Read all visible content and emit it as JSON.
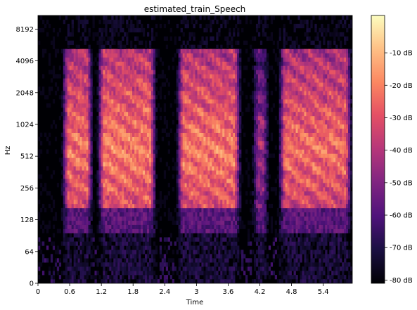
{
  "chart_data": {
    "type": "heatmap",
    "title": "estimated_train_Speech",
    "xlabel": "Time",
    "ylabel": "Hz",
    "x_ticks": [
      "0",
      "0.6",
      "1.2",
      "1.8",
      "2.4",
      "3",
      "3.6",
      "4.2",
      "4.8",
      "5.4"
    ],
    "x_tick_values": [
      0,
      0.6,
      1.2,
      1.8,
      2.4,
      3.0,
      3.6,
      4.2,
      4.8,
      5.4
    ],
    "xlim": [
      0,
      5.95
    ],
    "y_ticks": [
      "0",
      "64",
      "128",
      "256",
      "512",
      "1024",
      "2048",
      "4096",
      "8192"
    ],
    "y_tick_values": [
      0,
      64,
      128,
      256,
      512,
      1024,
      2048,
      4096,
      8192
    ],
    "y_scale": "log",
    "ylim": [
      0,
      11025
    ],
    "colorbar": {
      "label_ticks": [
        "-10 dB",
        "-20 dB",
        "-30 dB",
        "-40 dB",
        "-50 dB",
        "-60 dB",
        "-70 dB",
        "-80 dB"
      ],
      "values": [
        -10,
        -20,
        -30,
        -40,
        -50,
        -60,
        -70,
        -80
      ],
      "range": [
        -80,
        0
      ],
      "colormap": "magma"
    },
    "speech_segments": [
      {
        "start": 0.45,
        "end": 1.05,
        "peak_db": -5
      },
      {
        "start": 1.12,
        "end": 2.25,
        "peak_db": -3
      },
      {
        "start": 2.62,
        "end": 3.85,
        "peak_db": -4
      },
      {
        "start": 4.05,
        "end": 4.38,
        "peak_db": -25
      },
      {
        "start": 4.55,
        "end": 5.95,
        "peak_db": -6
      }
    ]
  },
  "colors": {
    "background": "#ffffff",
    "plot_floor": "#000004",
    "axis": "#000000"
  }
}
